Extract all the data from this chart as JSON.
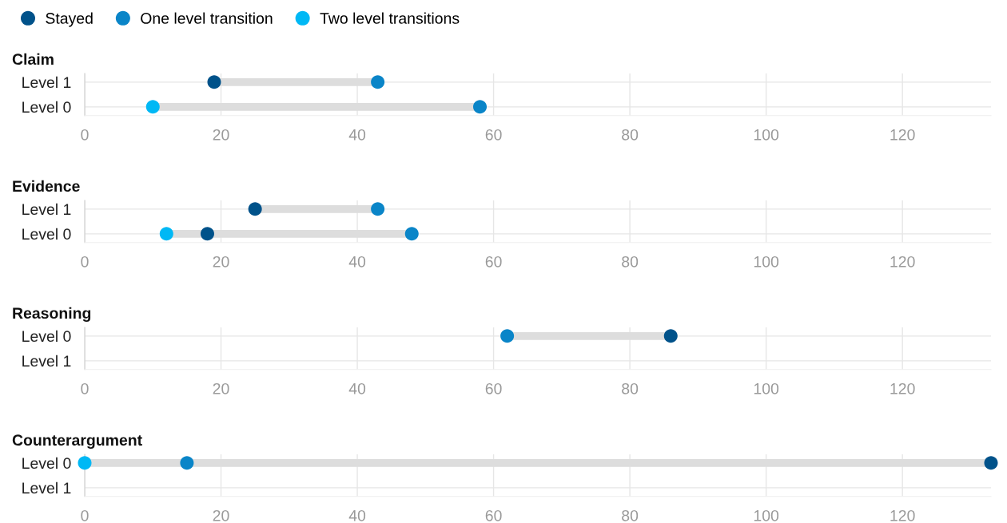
{
  "chart_data": [
    {
      "type": "scatter",
      "title": "Claim",
      "orientation": "horizontal",
      "legend": "top left",
      "grid": true,
      "marker": "circle",
      "categories": [
        "Level 1",
        "Level 0"
      ],
      "xlim": [
        0,
        133
      ],
      "xticks": [
        0,
        20,
        40,
        60,
        80,
        100,
        120
      ],
      "series": [
        {
          "name": "Stayed",
          "color": "#00528a",
          "values": [
            19,
            null
          ]
        },
        {
          "name": "One level transition",
          "color": "#0a85c8",
          "values": [
            43,
            58
          ]
        },
        {
          "name": "Two level transitions",
          "color": "#00b8f5",
          "values": [
            null,
            10
          ]
        }
      ]
    },
    {
      "type": "scatter",
      "title": "Evidence",
      "orientation": "horizontal",
      "grid": true,
      "marker": "circle",
      "categories": [
        "Level 1",
        "Level 0"
      ],
      "xlim": [
        0,
        133
      ],
      "xticks": [
        0,
        20,
        40,
        60,
        80,
        100,
        120
      ],
      "series": [
        {
          "color": "#00528a",
          "values": [
            25,
            18
          ]
        },
        {
          "color": "#0a85c8",
          "values": [
            43,
            48
          ]
        },
        {
          "color": "#00b8f5",
          "values": [
            null,
            12
          ]
        }
      ]
    },
    {
      "type": "scatter",
      "title": "Reasoning",
      "orientation": "horizontal",
      "grid": true,
      "marker": "circle",
      "categories": [
        "Level 0",
        "Level 1"
      ],
      "xlim": [
        0,
        133
      ],
      "xticks": [
        0,
        20,
        40,
        60,
        80,
        100,
        120
      ],
      "series": [
        {
          "color": "#00528a",
          "values": [
            86,
            null
          ]
        },
        {
          "color": "#0a85c8",
          "values": [
            62,
            null
          ]
        },
        {
          "color": "#00b8f5",
          "values": [
            null,
            null
          ]
        }
      ]
    },
    {
      "type": "scatter",
      "title": "Counterargument",
      "orientation": "horizontal",
      "grid": true,
      "marker": "circle",
      "categories": [
        "Level 0",
        "Level 1"
      ],
      "xlim": [
        0,
        133
      ],
      "xticks": [
        0,
        20,
        40,
        60,
        80,
        100,
        120
      ],
      "series": [
        {
          "color": "#00528a",
          "values": [
            133,
            null
          ]
        },
        {
          "color": "#0a85c8",
          "values": [
            15,
            null
          ]
        },
        {
          "color": "#00b8f5",
          "values": [
            0,
            null
          ]
        }
      ]
    }
  ]
}
